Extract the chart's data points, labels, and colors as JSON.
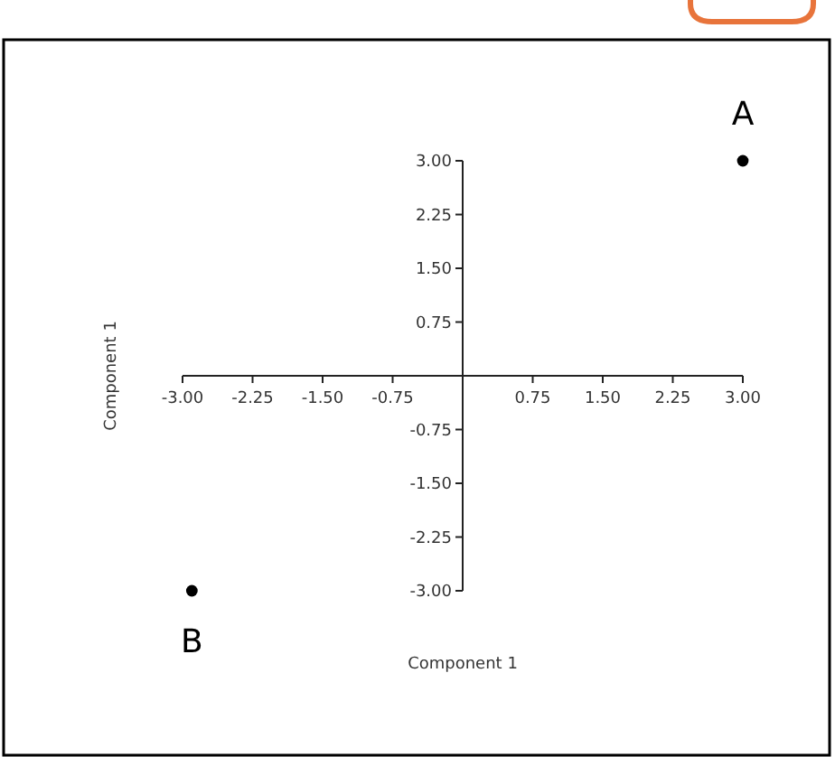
{
  "chart_data": {
    "type": "scatter",
    "xlabel": "Component 1",
    "ylabel": "Component 1",
    "x": [
      3,
      -2.9
    ],
    "values": [
      3,
      -3
    ],
    "color": "#000000",
    "marker": "circle",
    "grid": false,
    "xlim": [
      -3,
      3
    ],
    "ylim": [
      -3,
      3
    ],
    "xticks": [
      {
        "value": -3,
        "label": "-3.00"
      },
      {
        "value": -2.25,
        "label": "-2.25"
      },
      {
        "value": -1.5,
        "label": "-1.50"
      },
      {
        "value": -0.75,
        "label": "-0.75"
      },
      {
        "value": 0.75,
        "label": "0.75"
      },
      {
        "value": 1.5,
        "label": "1.50"
      },
      {
        "value": 2.25,
        "label": "2.25"
      },
      {
        "value": 3,
        "label": "3.00"
      }
    ],
    "yticks": [
      {
        "value": -3,
        "label": "-3.00"
      },
      {
        "value": -2.25,
        "label": "-2.25"
      },
      {
        "value": -1.5,
        "label": "-1.50"
      },
      {
        "value": -0.75,
        "label": "-0.75"
      },
      {
        "value": 0.75,
        "label": "0.75"
      },
      {
        "value": 1.5,
        "label": "1.50"
      },
      {
        "value": 2.25,
        "label": "2.25"
      },
      {
        "value": 3,
        "label": "3.00"
      }
    ],
    "annotations": [
      {
        "text": "A",
        "x": 3,
        "y": 3
      },
      {
        "text": "B",
        "x": -2.9,
        "y": -3
      }
    ]
  }
}
